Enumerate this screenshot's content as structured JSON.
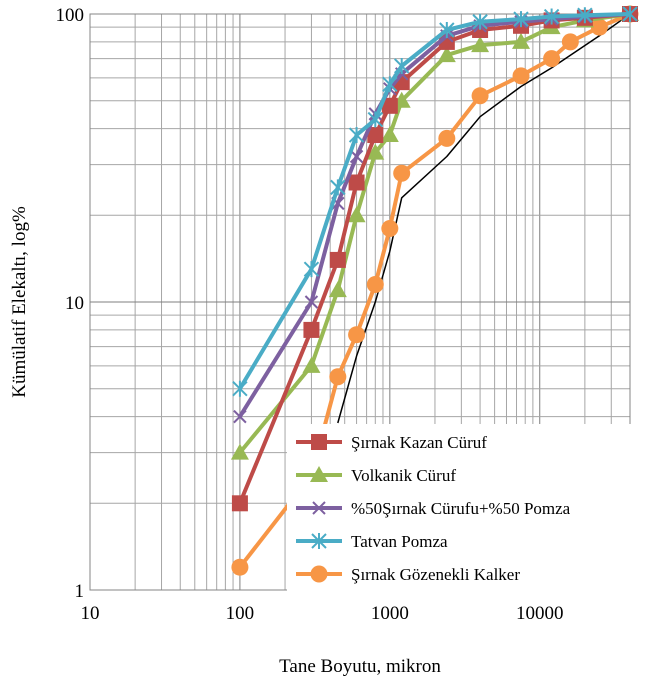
{
  "chart_data": {
    "type": "line",
    "xlabel": "Tane Boyutu, mikron",
    "ylabel": "Kümülatif Elekaltı, log%",
    "x_scale": "log",
    "y_scale": "log",
    "xlim": [
      10,
      40000
    ],
    "ylim": [
      1,
      100
    ],
    "x_ticks": [
      10,
      100,
      1000,
      10000
    ],
    "x_tick_labels": [
      "10",
      "100",
      "1000",
      "10000"
    ],
    "y_ticks": [
      1,
      10,
      100
    ],
    "y_tick_labels": [
      "1",
      "10",
      "100"
    ],
    "grid": true,
    "legend_position": "bottom-right",
    "series": [
      {
        "name": "Şırnak Kazan Cüruf",
        "color": "#be4b48",
        "marker": "square",
        "x": [
          100,
          300,
          450,
          600,
          800,
          1000,
          1200,
          2400,
          4000,
          7500,
          12000,
          20000,
          40000
        ],
        "y": [
          2,
          8,
          14,
          26,
          38,
          48,
          58,
          80,
          88,
          91,
          95,
          97,
          100
        ]
      },
      {
        "name": "Volkanik Cüruf",
        "color": "#98b954",
        "marker": "triangle",
        "x": [
          100,
          300,
          450,
          600,
          800,
          1000,
          1200,
          2400,
          4000,
          7500,
          12000,
          20000,
          40000
        ],
        "y": [
          3,
          6,
          11,
          20,
          33,
          38,
          50,
          72,
          78,
          80,
          90,
          95,
          100
        ]
      },
      {
        "name": "%50Şırnak Cürufu+%50 Pomza",
        "color": "#7d60a0",
        "marker": "x",
        "x": [
          100,
          300,
          450,
          600,
          800,
          1000,
          1200,
          2400,
          4000,
          7500,
          12000,
          20000,
          40000
        ],
        "y": [
          4,
          10,
          22,
          32,
          45,
          55,
          62,
          84,
          91,
          94,
          96,
          98,
          100
        ]
      },
      {
        "name": "Tatvan Pomza",
        "color": "#4aacc6",
        "marker": "star",
        "x": [
          100,
          300,
          450,
          600,
          800,
          1000,
          1200,
          2400,
          4000,
          7500,
          12000,
          20000,
          40000
        ],
        "y": [
          5,
          13,
          25,
          38,
          43,
          57,
          66,
          88,
          94,
          96,
          98,
          99,
          100
        ]
      },
      {
        "name": "Şırnak Gözenekli Kalker",
        "color": "#f79646",
        "marker": "circle",
        "x": [
          100,
          300,
          450,
          600,
          800,
          1000,
          1200,
          2400,
          4000,
          7500,
          12000,
          16000,
          25000,
          40000
        ],
        "y": [
          1.2,
          2.5,
          5.5,
          7.7,
          11.5,
          18,
          28,
          37,
          52,
          61,
          70,
          80,
          90,
          100
        ]
      },
      {
        "name": "",
        "color": "#000000",
        "marker": "none",
        "x": [
          450,
          600,
          800,
          1000,
          1200,
          2400,
          4000,
          7500,
          12000,
          25000,
          40000
        ],
        "y": [
          3.8,
          6.5,
          10,
          15,
          23,
          32,
          44,
          56,
          65,
          84,
          100
        ]
      }
    ]
  }
}
